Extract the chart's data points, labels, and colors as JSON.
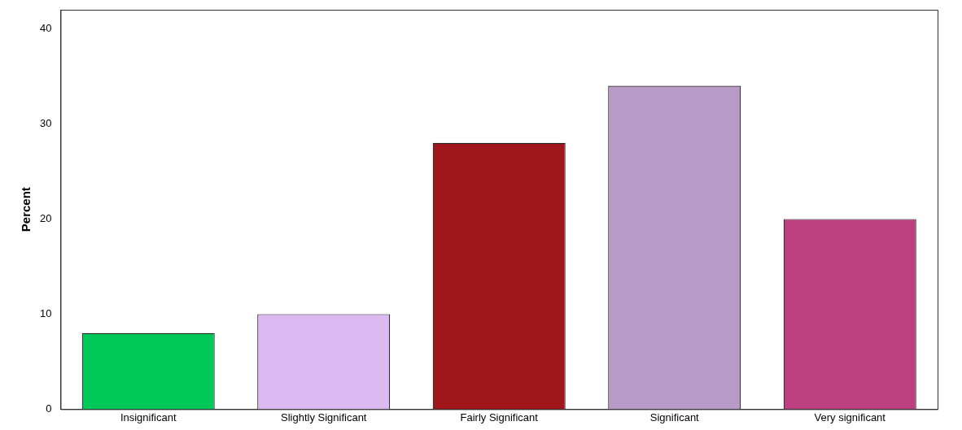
{
  "chart_data": {
    "type": "bar",
    "ylabel": "Percent",
    "categories": [
      "Insignificant",
      "Slightly Significant",
      "Fairly Significant",
      "Significant",
      "Very significant"
    ],
    "values": [
      8,
      10,
      28,
      34,
      20
    ],
    "colors": [
      "#00c95a",
      "#dcb9f0",
      "#a0161a",
      "#b89ac8",
      "#bc4080"
    ],
    "ylim": [
      0,
      42
    ],
    "yticks": [
      0,
      10,
      20,
      30,
      40
    ],
    "grid": false,
    "legend": false
  }
}
